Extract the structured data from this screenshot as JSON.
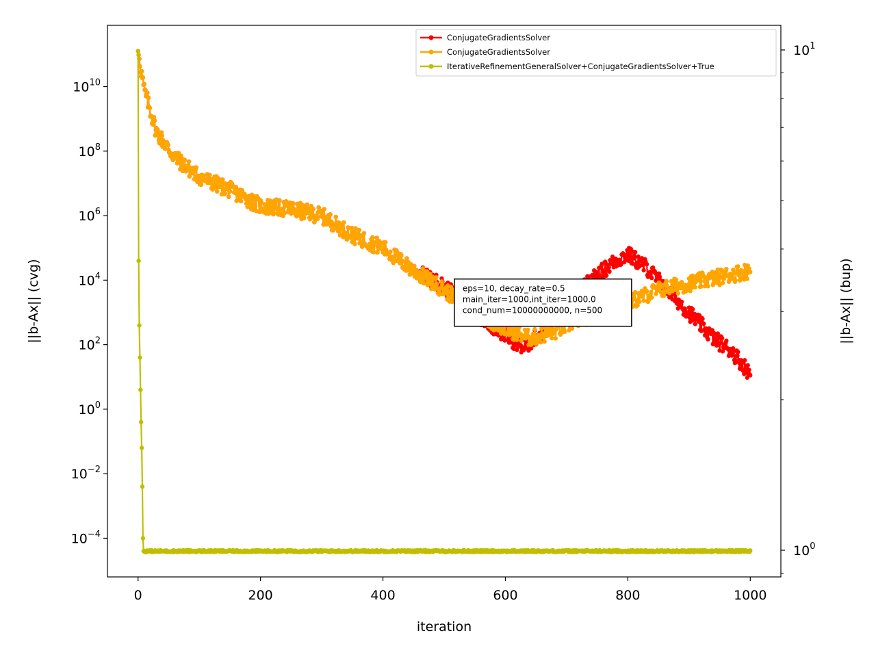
{
  "chart_data": {
    "type": "line",
    "xlabel": "iteration",
    "ylabel_left": "||b-Ax|| (cvg)",
    "ylabel_right": "||b-Ax|| (bup)",
    "x_range": [
      0,
      1000
    ],
    "xlim": [
      -50,
      1050
    ],
    "x_ticks": [
      0,
      200,
      400,
      600,
      800,
      1000
    ],
    "y_left_scale": "log",
    "y_left_log10_range": [
      -5.2,
      11.9
    ],
    "y_left_tick_exponents": [
      -4,
      -2,
      0,
      2,
      4,
      6,
      8,
      10
    ],
    "y_right_scale": "log",
    "y_right_ticks": [
      1,
      10
    ],
    "y_right_minor_ticks": [
      2,
      3,
      4,
      5,
      6,
      7,
      8,
      9
    ],
    "legend_position": "top-right",
    "grid": false,
    "annotation": {
      "lines": [
        "eps=10, decay_rate=0.5",
        "main_iter=1000,int_iter=1000.0",
        "cond_num=10000000000, n=500"
      ],
      "anchor_x": 520,
      "anchor_log10_y": 2.55
    },
    "series": [
      {
        "name": "ConjugateGradientsSolver",
        "color": "#ff0000",
        "noise_log10": 0.25,
        "key_points_x": [
          0,
          10,
          30,
          60,
          100,
          150,
          200,
          250,
          300,
          350,
          400,
          450,
          500,
          550,
          600,
          630,
          660,
          700,
          740,
          780,
          800,
          830,
          860,
          900,
          940,
          970,
          1000
        ],
        "key_points_log10_y": [
          11.1,
          9.9,
          8.6,
          7.8,
          7.2,
          6.8,
          6.3,
          6.2,
          6.0,
          5.4,
          5.0,
          4.3,
          3.8,
          3.0,
          2.3,
          1.9,
          2.4,
          3.2,
          4.0,
          4.6,
          4.8,
          4.4,
          3.8,
          3.0,
          2.2,
          1.8,
          1.1
        ]
      },
      {
        "name": "ConjugateGradientsSolver",
        "color": "#ffa500",
        "noise_log10": 0.25,
        "key_points_x": [
          0,
          10,
          30,
          60,
          100,
          150,
          200,
          250,
          300,
          350,
          400,
          450,
          500,
          550,
          600,
          640,
          680,
          720,
          760,
          800,
          850,
          900,
          950,
          1000
        ],
        "key_points_log10_y": [
          11.1,
          9.9,
          8.6,
          7.8,
          7.2,
          6.8,
          6.3,
          6.2,
          6.0,
          5.4,
          5.0,
          4.3,
          3.7,
          3.0,
          2.5,
          2.2,
          2.4,
          2.8,
          3.0,
          3.3,
          3.7,
          3.9,
          4.1,
          4.3
        ]
      },
      {
        "name": "IterativeRefinementGeneralSolver+ConjugateGradientsSolver+True",
        "color": "#bfbf00",
        "points_x": [
          0,
          1,
          2,
          3,
          4,
          5,
          6,
          7,
          8,
          9
        ],
        "points_log10_y": [
          11.1,
          4.6,
          2.6,
          1.6,
          0.6,
          -0.4,
          -1.2,
          -2.4,
          -4.0,
          -4.4
        ],
        "plateau_log10_y": -4.4,
        "noise_log10": 0.03
      }
    ]
  }
}
